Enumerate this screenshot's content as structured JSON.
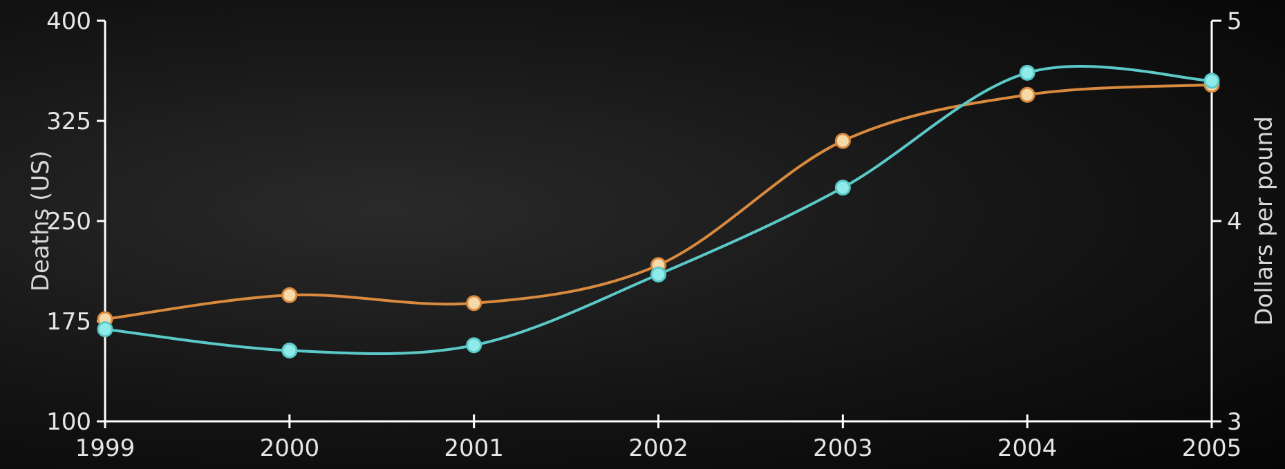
{
  "chart_data": {
    "type": "line",
    "x": [
      "1999",
      "2000",
      "2001",
      "2002",
      "2003",
      "2004",
      "2005"
    ],
    "series": [
      {
        "axis": "left",
        "color": "#5cc9c9",
        "values": [
          169,
          153,
          157,
          210,
          275,
          361,
          355
        ]
      },
      {
        "axis": "right",
        "color": "#d98a3e",
        "values": [
          3.51,
          3.63,
          3.59,
          3.78,
          4.4,
          4.63,
          4.68
        ]
      }
    ],
    "left_axis": {
      "label": "Deaths (US)",
      "ylim": [
        100,
        400
      ],
      "ticks": [
        "100",
        "175",
        "250",
        "325",
        "400"
      ]
    },
    "right_axis": {
      "label": "Dollars per pound",
      "ylim": [
        3,
        5
      ],
      "ticks": [
        "3",
        "4",
        "5"
      ]
    },
    "grid": false,
    "legend": "none"
  }
}
